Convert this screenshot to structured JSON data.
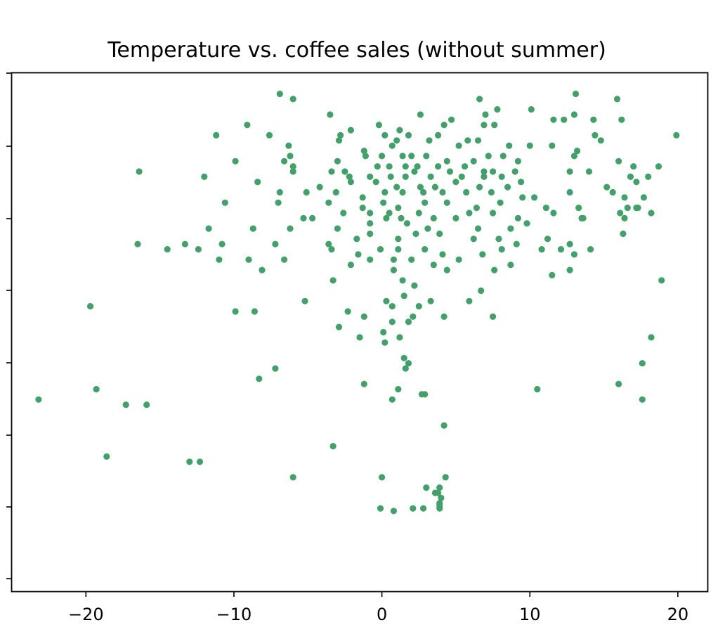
{
  "chart_data": {
    "type": "scatter",
    "title": "Temperature vs. coffee sales (without summer)",
    "xlabel": "",
    "ylabel": "",
    "xlim": [
      -25,
      22
    ],
    "ylim": [
      0,
      1
    ],
    "x_ticks": [
      -20,
      -10,
      0,
      10,
      20
    ],
    "x_tick_labels": [
      "−20",
      "−10",
      "0",
      "10",
      "20"
    ],
    "y_tick_labels_shown": false,
    "grid": false,
    "series": [
      {
        "color": "#44a06a",
        "points": [
          [
            -6.9,
            0.96
          ],
          [
            -6.0,
            0.95
          ],
          [
            6.6,
            0.95
          ],
          [
            13.1,
            0.96
          ],
          [
            15.9,
            0.95
          ],
          [
            -3.5,
            0.92
          ],
          [
            2.6,
            0.92
          ],
          [
            7.0,
            0.92
          ],
          [
            7.8,
            0.93
          ],
          [
            10.1,
            0.93
          ],
          [
            11.6,
            0.91
          ],
          [
            12.3,
            0.91
          ],
          [
            13.0,
            0.92
          ],
          [
            14.3,
            0.91
          ],
          [
            16.2,
            0.91
          ],
          [
            -9.1,
            0.9
          ],
          [
            -2.1,
            0.89
          ],
          [
            -0.2,
            0.9
          ],
          [
            1.2,
            0.89
          ],
          [
            4.2,
            0.9
          ],
          [
            4.7,
            0.91
          ],
          [
            6.9,
            0.9
          ],
          [
            7.6,
            0.9
          ],
          [
            -11.2,
            0.88
          ],
          [
            -7.6,
            0.88
          ],
          [
            -2.8,
            0.88
          ],
          [
            1.8,
            0.88
          ],
          [
            3.8,
            0.88
          ],
          [
            14.4,
            0.88
          ],
          [
            19.9,
            0.88
          ],
          [
            -6.3,
            0.86
          ],
          [
            -2.9,
            0.87
          ],
          [
            0.2,
            0.88
          ],
          [
            1.0,
            0.87
          ],
          [
            3.2,
            0.87
          ],
          [
            5.8,
            0.87
          ],
          [
            6.5,
            0.87
          ],
          [
            11.5,
            0.86
          ],
          [
            14.8,
            0.87
          ],
          [
            -1.2,
            0.85
          ],
          [
            0.7,
            0.86
          ],
          [
            5.2,
            0.86
          ],
          [
            8.6,
            0.86
          ],
          [
            10.0,
            0.86
          ],
          [
            13.2,
            0.85
          ],
          [
            -6.2,
            0.84
          ],
          [
            -9.9,
            0.83
          ],
          [
            -6.6,
            0.83
          ],
          [
            -3.0,
            0.83
          ],
          [
            -1.1,
            0.84
          ],
          [
            0.0,
            0.84
          ],
          [
            1.4,
            0.84
          ],
          [
            2.0,
            0.84
          ],
          [
            3.0,
            0.84
          ],
          [
            4.4,
            0.83
          ],
          [
            6.2,
            0.83
          ],
          [
            7.2,
            0.84
          ],
          [
            8.2,
            0.84
          ],
          [
            9.2,
            0.83
          ],
          [
            13.0,
            0.84
          ],
          [
            -16.4,
            0.81
          ],
          [
            -6.0,
            0.82
          ],
          [
            -3.4,
            0.81
          ],
          [
            -2.5,
            0.81
          ],
          [
            -0.3,
            0.82
          ],
          [
            0.5,
            0.82
          ],
          [
            1.6,
            0.82
          ],
          [
            2.4,
            0.82
          ],
          [
            3.8,
            0.82
          ],
          [
            5.6,
            0.82
          ],
          [
            6.9,
            0.81
          ],
          [
            7.5,
            0.81
          ],
          [
            9.0,
            0.81
          ],
          [
            14.0,
            0.81
          ],
          [
            16.0,
            0.83
          ],
          [
            17.0,
            0.82
          ],
          [
            18.7,
            0.82
          ],
          [
            -12.0,
            0.8
          ],
          [
            -6.0,
            0.81
          ],
          [
            -2.2,
            0.8
          ],
          [
            -0.8,
            0.8
          ],
          [
            0.6,
            0.8
          ],
          [
            1.6,
            0.8
          ],
          [
            2.2,
            0.81
          ],
          [
            3.3,
            0.8
          ],
          [
            4.6,
            0.81
          ],
          [
            5.4,
            0.8
          ],
          [
            6.9,
            0.8
          ],
          [
            8.1,
            0.8
          ],
          [
            9.4,
            0.79
          ],
          [
            -8.4,
            0.79
          ],
          [
            -4.2,
            0.78
          ],
          [
            -2.1,
            0.79
          ],
          [
            -0.4,
            0.79
          ],
          [
            1.0,
            0.78
          ],
          [
            2.6,
            0.78
          ],
          [
            3.6,
            0.78
          ],
          [
            5.0,
            0.79
          ],
          [
            6.6,
            0.78
          ],
          [
            8.5,
            0.78
          ],
          [
            12.7,
            0.81
          ],
          [
            15.2,
            0.78
          ],
          [
            16.8,
            0.8
          ],
          [
            17.2,
            0.79
          ],
          [
            18.0,
            0.8
          ],
          [
            -6.9,
            0.77
          ],
          [
            -5.1,
            0.77
          ],
          [
            -3.1,
            0.77
          ],
          [
            -1.3,
            0.76
          ],
          [
            0.2,
            0.77
          ],
          [
            1.4,
            0.77
          ],
          [
            2.8,
            0.77
          ],
          [
            4.1,
            0.77
          ],
          [
            5.7,
            0.77
          ],
          [
            7.4,
            0.77
          ],
          [
            9.5,
            0.76
          ],
          [
            10.3,
            0.76
          ],
          [
            12.7,
            0.77
          ],
          [
            15.6,
            0.77
          ],
          [
            16.4,
            0.76
          ],
          [
            -10.6,
            0.75
          ],
          [
            -7.0,
            0.75
          ],
          [
            -3.6,
            0.75
          ],
          [
            -1.3,
            0.74
          ],
          [
            0.1,
            0.75
          ],
          [
            1.1,
            0.74
          ],
          [
            2.9,
            0.75
          ],
          [
            4.4,
            0.75
          ],
          [
            6.4,
            0.74
          ],
          [
            8.0,
            0.75
          ],
          [
            11.1,
            0.74
          ],
          [
            13.3,
            0.74
          ],
          [
            16.6,
            0.74
          ],
          [
            17.7,
            0.76
          ],
          [
            17.3,
            0.74
          ],
          [
            -5.3,
            0.72
          ],
          [
            -4.7,
            0.72
          ],
          [
            -2.6,
            0.73
          ],
          [
            -0.8,
            0.73
          ],
          [
            0.5,
            0.73
          ],
          [
            1.3,
            0.72
          ],
          [
            2.5,
            0.73
          ],
          [
            3.5,
            0.72
          ],
          [
            5.9,
            0.73
          ],
          [
            7.5,
            0.73
          ],
          [
            9.2,
            0.72
          ],
          [
            11.6,
            0.73
          ],
          [
            13.5,
            0.72
          ],
          [
            16.1,
            0.73
          ],
          [
            17.2,
            0.74
          ],
          [
            -11.7,
            0.7
          ],
          [
            -8.7,
            0.7
          ],
          [
            -6.2,
            0.7
          ],
          [
            -3.0,
            0.7
          ],
          [
            -0.8,
            0.71
          ],
          [
            0.3,
            0.72
          ],
          [
            1.7,
            0.71
          ],
          [
            3.1,
            0.7
          ],
          [
            5.0,
            0.72
          ],
          [
            6.5,
            0.7
          ],
          [
            8.7,
            0.7
          ],
          [
            9.8,
            0.71
          ],
          [
            13.6,
            0.72
          ],
          [
            16.4,
            0.72
          ],
          [
            18.2,
            0.73
          ],
          [
            -16.5,
            0.67
          ],
          [
            -14.5,
            0.66
          ],
          [
            -13.3,
            0.67
          ],
          [
            -10.8,
            0.67
          ],
          [
            -7.2,
            0.67
          ],
          [
            -3.6,
            0.67
          ],
          [
            -1.7,
            0.68
          ],
          [
            -0.8,
            0.69
          ],
          [
            1.1,
            0.68
          ],
          [
            2.3,
            0.69
          ],
          [
            3.9,
            0.69
          ],
          [
            6.2,
            0.68
          ],
          [
            7.9,
            0.68
          ],
          [
            9.1,
            0.67
          ],
          [
            11.2,
            0.68
          ],
          [
            -12.4,
            0.66
          ],
          [
            -3.4,
            0.66
          ],
          [
            -1.6,
            0.65
          ],
          [
            -0.1,
            0.66
          ],
          [
            1.1,
            0.66
          ],
          [
            2.9,
            0.66
          ],
          [
            4.1,
            0.65
          ],
          [
            5.2,
            0.64
          ],
          [
            6.8,
            0.65
          ],
          [
            8.1,
            0.66
          ],
          [
            10.8,
            0.66
          ],
          [
            12.1,
            0.66
          ],
          [
            12.7,
            0.67
          ],
          [
            14.1,
            0.66
          ],
          [
            16.3,
            0.69
          ],
          [
            -11.0,
            0.64
          ],
          [
            -9.0,
            0.64
          ],
          [
            -6.6,
            0.64
          ],
          [
            -2.1,
            0.63
          ],
          [
            -0.8,
            0.64
          ],
          [
            0.8,
            0.64
          ],
          [
            2.0,
            0.64
          ],
          [
            3.5,
            0.63
          ],
          [
            4.4,
            0.62
          ],
          [
            7.6,
            0.62
          ],
          [
            8.7,
            0.63
          ],
          [
            11.5,
            0.61
          ],
          [
            12.7,
            0.62
          ],
          [
            13.0,
            0.65
          ],
          [
            18.9,
            0.6
          ],
          [
            -8.1,
            0.62
          ],
          [
            -3.3,
            0.6
          ],
          [
            0.8,
            0.62
          ],
          [
            1.4,
            0.6
          ],
          [
            2.2,
            0.59
          ],
          [
            6.7,
            0.58
          ],
          [
            -5.2,
            0.56
          ],
          [
            0.3,
            0.56
          ],
          [
            1.5,
            0.57
          ],
          [
            3.3,
            0.56
          ],
          [
            5.9,
            0.56
          ],
          [
            -19.7,
            0.55
          ],
          [
            -9.9,
            0.54
          ],
          [
            -8.6,
            0.54
          ],
          [
            -2.3,
            0.54
          ],
          [
            -1.2,
            0.53
          ],
          [
            0.7,
            0.55
          ],
          [
            2.5,
            0.55
          ],
          [
            4.2,
            0.53
          ],
          [
            7.5,
            0.53
          ],
          [
            -2.9,
            0.51
          ],
          [
            0.7,
            0.52
          ],
          [
            1.8,
            0.52
          ],
          [
            2.1,
            0.53
          ],
          [
            1.2,
            0.49
          ],
          [
            -1.5,
            0.49
          ],
          [
            0.1,
            0.5
          ],
          [
            0.2,
            0.48
          ],
          [
            1.5,
            0.45
          ],
          [
            1.8,
            0.44
          ],
          [
            18.2,
            0.49
          ],
          [
            -7.2,
            0.43
          ],
          [
            -8.3,
            0.41
          ],
          [
            1.6,
            0.43
          ],
          [
            17.6,
            0.44
          ],
          [
            -19.3,
            0.39
          ],
          [
            -1.2,
            0.4
          ],
          [
            2.7,
            0.38
          ],
          [
            1.1,
            0.39
          ],
          [
            10.5,
            0.39
          ],
          [
            16.0,
            0.4
          ],
          [
            -23.2,
            0.37
          ],
          [
            -17.3,
            0.36
          ],
          [
            -15.9,
            0.36
          ],
          [
            0.7,
            0.37
          ],
          [
            2.9,
            0.38
          ],
          [
            17.6,
            0.37
          ],
          [
            4.2,
            0.32
          ],
          [
            -3.3,
            0.28
          ],
          [
            -18.6,
            0.26
          ],
          [
            -13.0,
            0.25
          ],
          [
            -12.3,
            0.25
          ],
          [
            -6.0,
            0.22
          ],
          [
            0.0,
            0.22
          ],
          [
            4.3,
            0.22
          ],
          [
            3.0,
            0.2
          ],
          [
            3.8,
            0.19
          ],
          [
            3.9,
            0.2
          ],
          [
            3.6,
            0.19
          ],
          [
            4.0,
            0.18
          ],
          [
            3.9,
            0.17
          ],
          [
            3.9,
            0.165
          ],
          [
            -0.1,
            0.16
          ],
          [
            0.8,
            0.155
          ],
          [
            2.1,
            0.16
          ],
          [
            2.8,
            0.16
          ],
          [
            3.9,
            0.16
          ]
        ]
      }
    ]
  }
}
